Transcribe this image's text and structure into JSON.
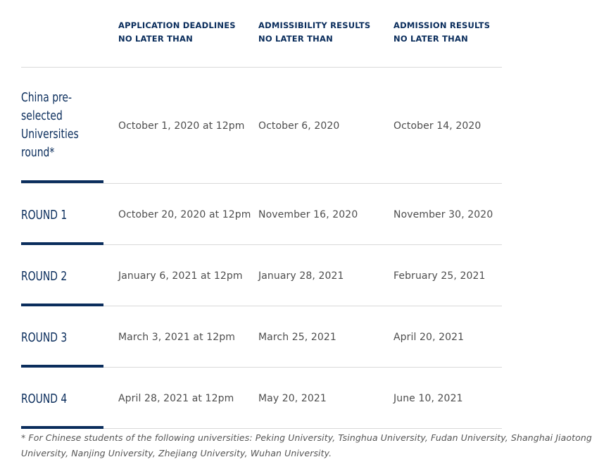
{
  "columns": [
    {
      "line1": "APPLICATION DEADLINES",
      "line2": "NO LATER THAN"
    },
    {
      "line1": "ADMISSIBILITY RESULTS",
      "line2": "NO LATER THAN"
    },
    {
      "line1": "ADMISSION RESULTS",
      "line2": "NO LATER THAN"
    }
  ],
  "rows": [
    {
      "label_lines": [
        "China pre-",
        "selected",
        "Universities",
        "round*"
      ],
      "deadline": "October 1, 2020 at 12pm",
      "admissibility": "October 6, 2020",
      "admission": "October 14, 2020"
    },
    {
      "label_lines": [
        "ROUND 1"
      ],
      "deadline": "October 20, 2020 at 12pm",
      "admissibility": "November 16, 2020",
      "admission": "November 30, 2020"
    },
    {
      "label_lines": [
        "ROUND 2"
      ],
      "deadline": "January 6, 2021 at 12pm",
      "admissibility": "January 28, 2021",
      "admission": "February 25, 2021"
    },
    {
      "label_lines": [
        "ROUND 3"
      ],
      "deadline": "March 3, 2021 at 12pm",
      "admissibility": "March 25, 2021",
      "admission": "April 20, 2021"
    },
    {
      "label_lines": [
        "ROUND 4"
      ],
      "deadline": "April 28, 2021 at 12pm",
      "admissibility": "May 20, 2021",
      "admission": "June 10, 2021"
    }
  ],
  "footnote": {
    "line1": "* For Chinese students of the following universities: Peking University, Tsinghua University, Fudan University, Shanghai Jiaotong",
    "line2": "University, Nanjing University, Zhejiang University, Wuhan University."
  },
  "colors": {
    "navy": "#0a2d5c",
    "text": "#4d4d4d",
    "rule": "#d9d9d9"
  }
}
